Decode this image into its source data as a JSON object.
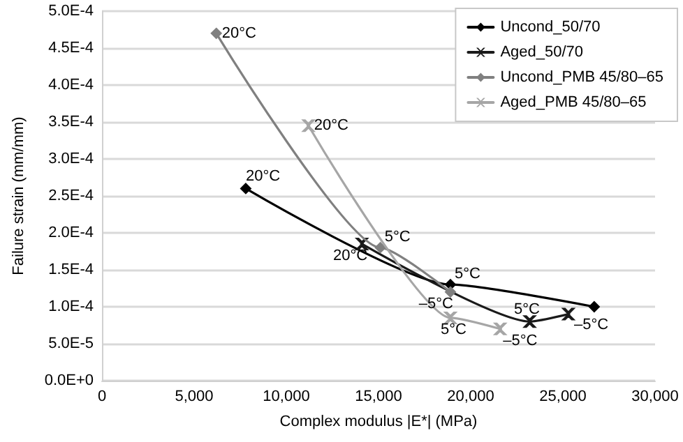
{
  "chart_data": {
    "type": "line",
    "xlabel": "Complex modulus |E*| (MPa)",
    "ylabel": "Failure strain (mm/mm)",
    "xlim": [
      0,
      30000
    ],
    "xticks": [
      {
        "value": 0,
        "label": "0"
      },
      {
        "value": 5000,
        "label": "5,000"
      },
      {
        "value": 10000,
        "label": "10,000"
      },
      {
        "value": 15000,
        "label": "15,000"
      },
      {
        "value": 20000,
        "label": "20,000"
      },
      {
        "value": 25000,
        "label": "25,000"
      },
      {
        "value": 30000,
        "label": "30,000"
      }
    ],
    "ylim": [
      0,
      0.0005
    ],
    "yticks": [
      {
        "value": 0,
        "label": "0.0E+0"
      },
      {
        "value": 5e-05,
        "label": "5.0E-5"
      },
      {
        "value": 0.0001,
        "label": "1.0E-4"
      },
      {
        "value": 0.00015,
        "label": "1.5E-4"
      },
      {
        "value": 0.0002,
        "label": "2.0E-4"
      },
      {
        "value": 0.00025,
        "label": "2.5E-4"
      },
      {
        "value": 0.0003,
        "label": "3.0E-4"
      },
      {
        "value": 0.00035,
        "label": "3.5E-4"
      },
      {
        "value": 0.0004,
        "label": "4.0E-4"
      },
      {
        "value": 0.00045,
        "label": "4.5E-4"
      },
      {
        "value": 0.0005,
        "label": "5.0E-4"
      }
    ],
    "grid": "y",
    "legend": "top right",
    "line_style": "solid",
    "series": [
      {
        "name": "Uncond_50/70",
        "color": "#000000",
        "marker": "diamond",
        "x": [
          7800,
          18900,
          26700
        ],
        "values": [
          0.00026,
          0.00013,
          0.0001
        ]
      },
      {
        "name": "Aged_50/70",
        "color": "#1a1a1a",
        "marker": "cross",
        "x": [
          14100,
          23200,
          25300
        ],
        "values": [
          0.000185,
          8e-05,
          9e-05
        ]
      },
      {
        "name": "Uncond_PMB 45/80–65",
        "color": "#808080",
        "marker": "diamond",
        "x": [
          6200,
          15100,
          18900
        ],
        "values": [
          0.00047,
          0.00018,
          0.00012
        ]
      },
      {
        "name": "Aged_PMB 45/80–65",
        "color": "#a6a6a6",
        "marker": "cross",
        "x": [
          11200,
          18900,
          21600
        ],
        "values": [
          0.000345,
          8.5e-05,
          7e-05
        ]
      }
    ],
    "annotations": [
      {
        "text": "20°C",
        "x": 7800,
        "y": 0.00026
      },
      {
        "text": "5°C",
        "x": 18900,
        "y": 0.00013
      },
      {
        "text": "20°C",
        "x": 14100,
        "y": 0.000185
      },
      {
        "text": "5°C",
        "x": 23200,
        "y": 8e-05
      },
      {
        "text": "–5°C",
        "x": 25300,
        "y": 9e-05
      },
      {
        "text": "20°C",
        "x": 6200,
        "y": 0.00047
      },
      {
        "text": "5°C",
        "x": 15100,
        "y": 0.00018
      },
      {
        "text": "–5°C",
        "x": 18900,
        "y": 0.00012
      },
      {
        "text": "20°C",
        "x": 11200,
        "y": 0.000345
      },
      {
        "text": "5°C",
        "x": 18900,
        "y": 8.5e-05
      },
      {
        "text": "–5°C",
        "x": 21600,
        "y": 7e-05
      }
    ]
  }
}
